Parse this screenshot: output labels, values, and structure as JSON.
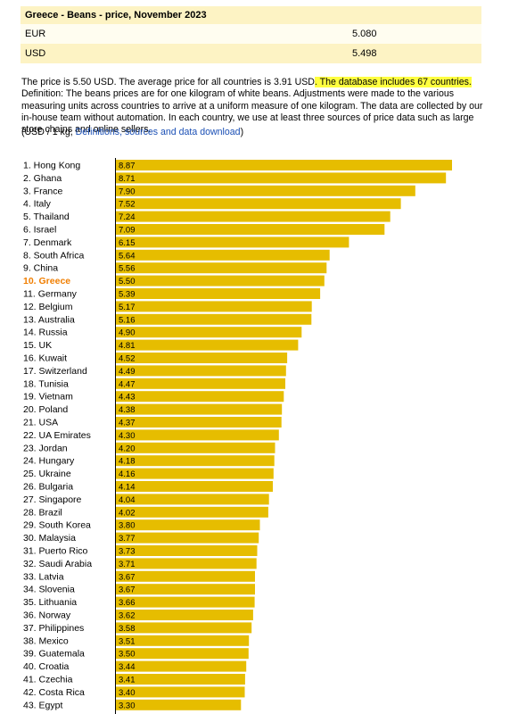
{
  "header": {
    "title": "Greece - Beans - price, November 2023",
    "rows": [
      {
        "currency": "EUR",
        "value": "5.080"
      },
      {
        "currency": "USD",
        "value": "5.498"
      }
    ]
  },
  "description": {
    "part1": "The price is 5.50 USD. The average price for all countries is 3.91 USD",
    "highlight": ". The database includes 67 countries.",
    "part2": " Definition: The beans prices are for one kilogram of white beans. Adjustments were made to the various measuring units across countries to arrive at a uniform measure of one kilogram. The data are collected by our in-house team without automation. In each country, we use at least three sources of price data such as large store chains and online sellers."
  },
  "units": {
    "prefix": "(USD / 1 kg, ",
    "link": "Definitions, sources and data download",
    "suffix": ")"
  },
  "colors": {
    "bar": "#e6bd00",
    "highlight_label": "#f07e00",
    "header_bg": "#fdf3c4"
  },
  "chart_data": {
    "type": "bar",
    "orientation": "horizontal",
    "highlight": "10. Greece",
    "categories": [
      "1. Hong Kong",
      "2. Ghana",
      "3. France",
      "4. Italy",
      "5. Thailand",
      "6. Israel",
      "7. Denmark",
      "8. South Africa",
      "9. China",
      "10. Greece",
      "11. Germany",
      "12. Belgium",
      "13. Australia",
      "14. Russia",
      "15. UK",
      "16. Kuwait",
      "17. Switzerland",
      "18. Tunisia",
      "19. Vietnam",
      "20. Poland",
      "21. USA",
      "22. UA Emirates",
      "23. Jordan",
      "24. Hungary",
      "25. Ukraine",
      "26. Bulgaria",
      "27. Singapore",
      "28. Brazil",
      "29. South Korea",
      "30. Malaysia",
      "31. Puerto Rico",
      "32. Saudi Arabia",
      "33. Latvia",
      "34. Slovenia",
      "35. Lithuania",
      "36. Norway",
      "37. Philippines",
      "38. Mexico",
      "39. Guatemala",
      "40. Croatia",
      "41. Czechia",
      "42. Costa Rica",
      "43. Egypt"
    ],
    "values": [
      8.87,
      8.71,
      7.9,
      7.52,
      7.24,
      7.09,
      6.15,
      5.64,
      5.56,
      5.5,
      5.39,
      5.17,
      5.16,
      4.9,
      4.81,
      4.52,
      4.49,
      4.47,
      4.43,
      4.38,
      4.37,
      4.3,
      4.2,
      4.18,
      4.16,
      4.14,
      4.04,
      4.02,
      3.8,
      3.77,
      3.73,
      3.71,
      3.67,
      3.67,
      3.66,
      3.62,
      3.58,
      3.51,
      3.5,
      3.44,
      3.41,
      3.4,
      3.3
    ],
    "value_labels": [
      "8.87",
      "8.71",
      "7.90",
      "7.52",
      "7.24",
      "7.09",
      "6.15",
      "5.64",
      "5.56",
      "5.50",
      "5.39",
      "5.17",
      "5.16",
      "4.90",
      "4.81",
      "4.52",
      "4.49",
      "4.47",
      "4.43",
      "4.38",
      "4.37",
      "4.30",
      "4.20",
      "4.18",
      "4.16",
      "4.14",
      "4.04",
      "4.02",
      "3.80",
      "3.77",
      "3.73",
      "3.71",
      "3.67",
      "3.67",
      "3.66",
      "3.62",
      "3.58",
      "3.51",
      "3.50",
      "3.44",
      "3.41",
      "3.40",
      "3.30"
    ],
    "xlim": [
      0,
      8.87
    ]
  }
}
